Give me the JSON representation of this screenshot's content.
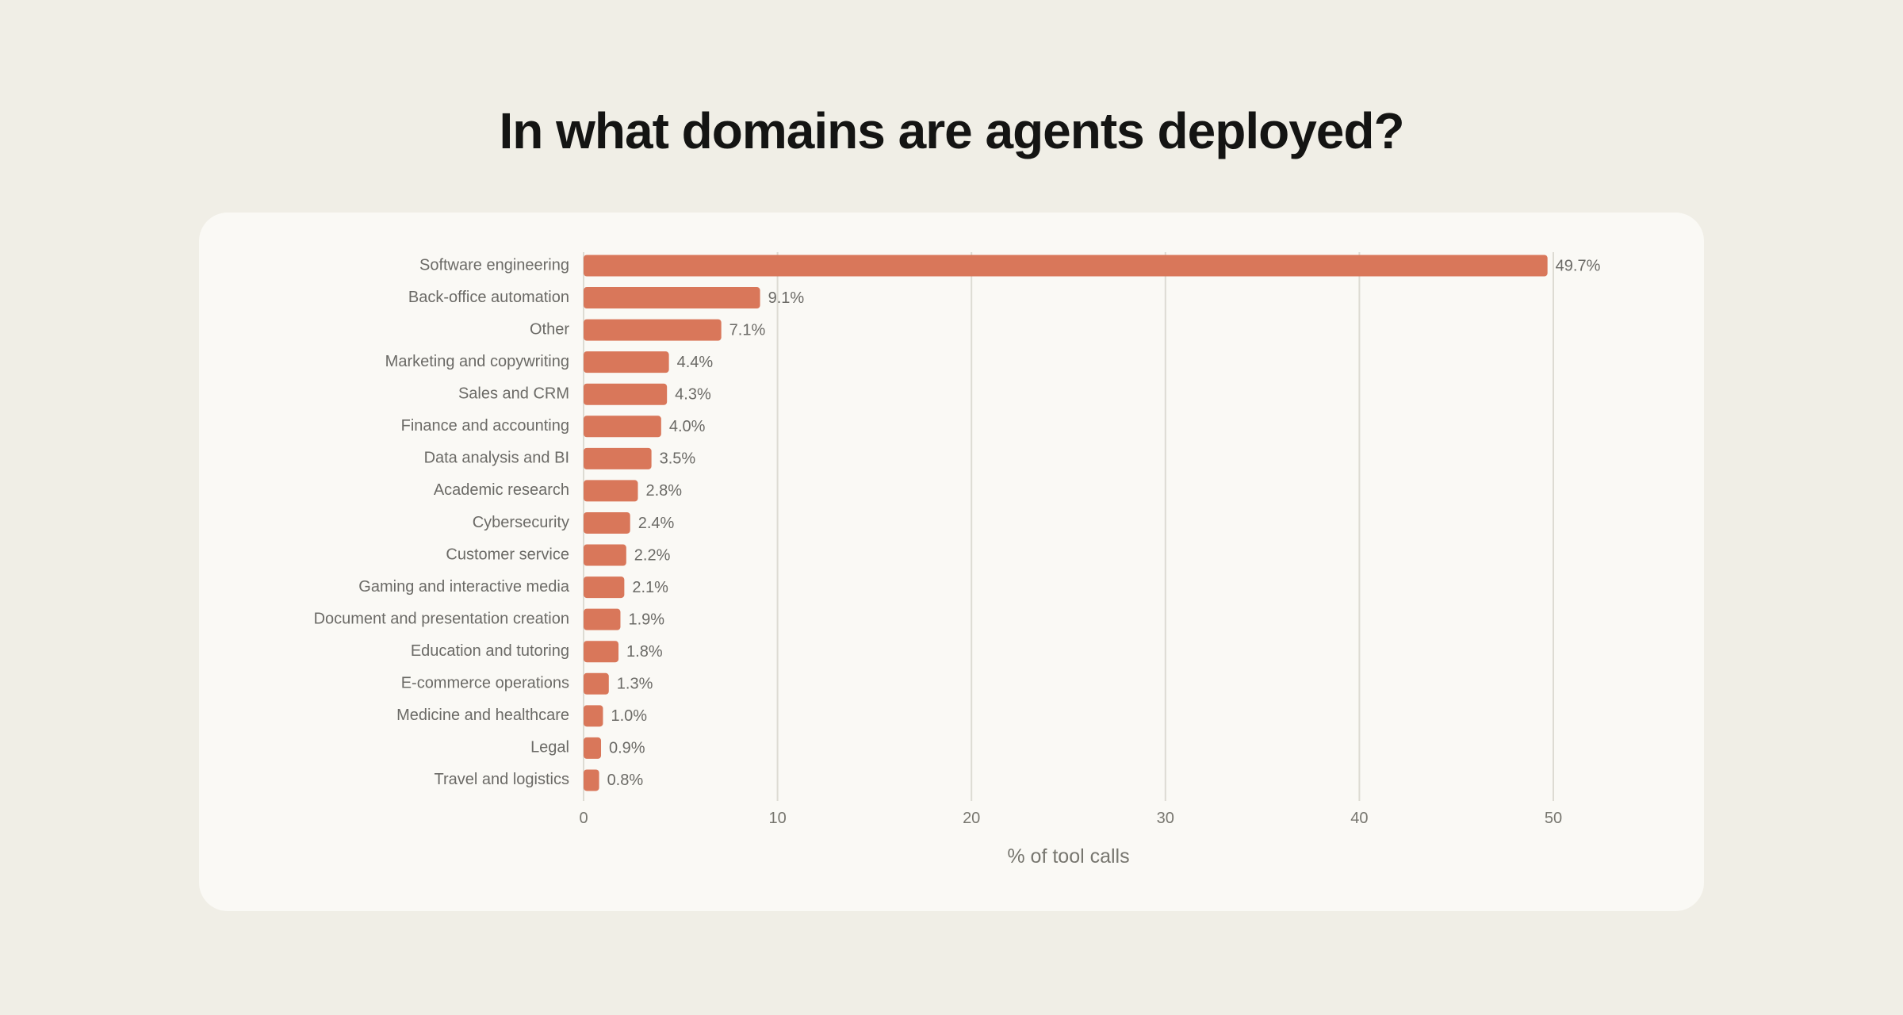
{
  "chart_data": {
    "type": "bar",
    "orientation": "horizontal",
    "title": "In what domains are agents deployed?",
    "xlabel": "% of tool calls",
    "ylabel": "",
    "xlim": [
      0,
      50
    ],
    "xticks": [
      0,
      10,
      20,
      30,
      40,
      50
    ],
    "grid": "vertical",
    "bar_color": "#D9775A",
    "categories": [
      "Software engineering",
      "Back-office automation",
      "Other",
      "Marketing and copywriting",
      "Sales and CRM",
      "Finance and accounting",
      "Data analysis and BI",
      "Academic research",
      "Cybersecurity",
      "Customer service",
      "Gaming and interactive media",
      "Document and presentation creation",
      "Education and tutoring",
      "E-commerce operations",
      "Medicine and healthcare",
      "Legal",
      "Travel and logistics"
    ],
    "values": [
      49.7,
      9.1,
      7.1,
      4.4,
      4.3,
      4.0,
      3.5,
      2.8,
      2.4,
      2.2,
      2.1,
      1.9,
      1.8,
      1.3,
      1.0,
      0.9,
      0.8
    ],
    "data_labels": [
      "49.7%",
      "9.1%",
      "7.1%",
      "4.4%",
      "4.3%",
      "4.0%",
      "3.5%",
      "2.8%",
      "2.4%",
      "2.2%",
      "2.1%",
      "1.9%",
      "1.8%",
      "1.3%",
      "1.0%",
      "0.9%",
      "0.8%"
    ]
  }
}
